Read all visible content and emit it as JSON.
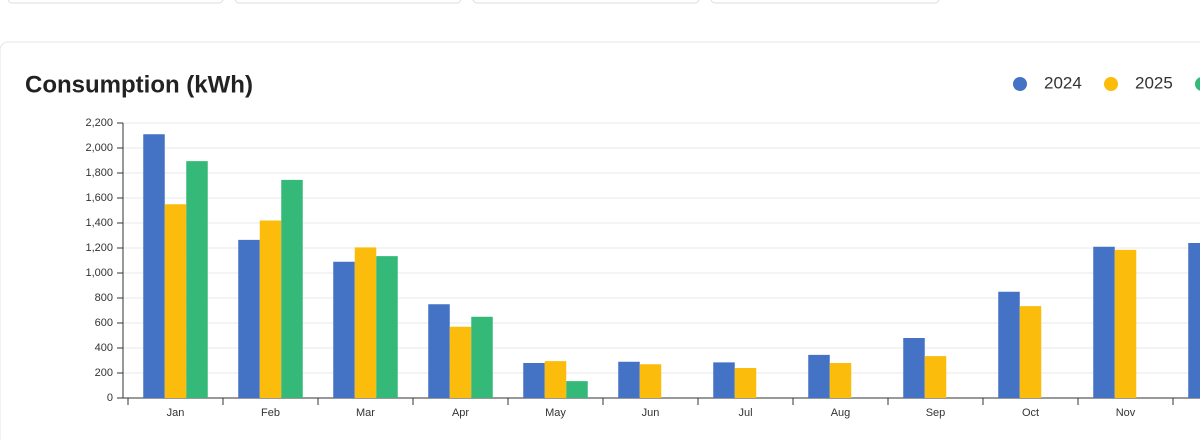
{
  "chart_data": {
    "type": "bar",
    "title": "Consumption (kWh)",
    "categories": [
      "Jan",
      "Feb",
      "Mar",
      "Apr",
      "May",
      "Jun",
      "Jul",
      "Aug",
      "Sep",
      "Oct",
      "Nov",
      null
    ],
    "series": [
      {
        "name": "2024",
        "color": "#4472c4",
        "values": [
          2110,
          1265,
          1090,
          750,
          280,
          290,
          285,
          345,
          480,
          850,
          1210,
          1240
        ]
      },
      {
        "name": "2025",
        "color": "#fbbc0c",
        "values": [
          1550,
          1420,
          1205,
          570,
          295,
          270,
          240,
          280,
          335,
          735,
          1185,
          null
        ]
      },
      {
        "name": null,
        "color": "#34b979",
        "values": [
          1895,
          1745,
          1135,
          650,
          135,
          null,
          null,
          null,
          null,
          null,
          null,
          null
        ]
      }
    ],
    "ylim": [
      0,
      2200
    ],
    "yticks": [
      0,
      200,
      400,
      600,
      800,
      {
        "value": 1000,
        "label": "1,000"
      },
      {
        "value": 1200,
        "label": "1,200"
      },
      {
        "value": 1400,
        "label": "1,400"
      },
      {
        "value": 1600,
        "label": "1,600"
      },
      {
        "value": 1800,
        "label": "1,800"
      },
      {
        "value": 2000,
        "label": "2,000"
      },
      {
        "value": 2200,
        "label": "2,200"
      }
    ],
    "grid": true
  }
}
